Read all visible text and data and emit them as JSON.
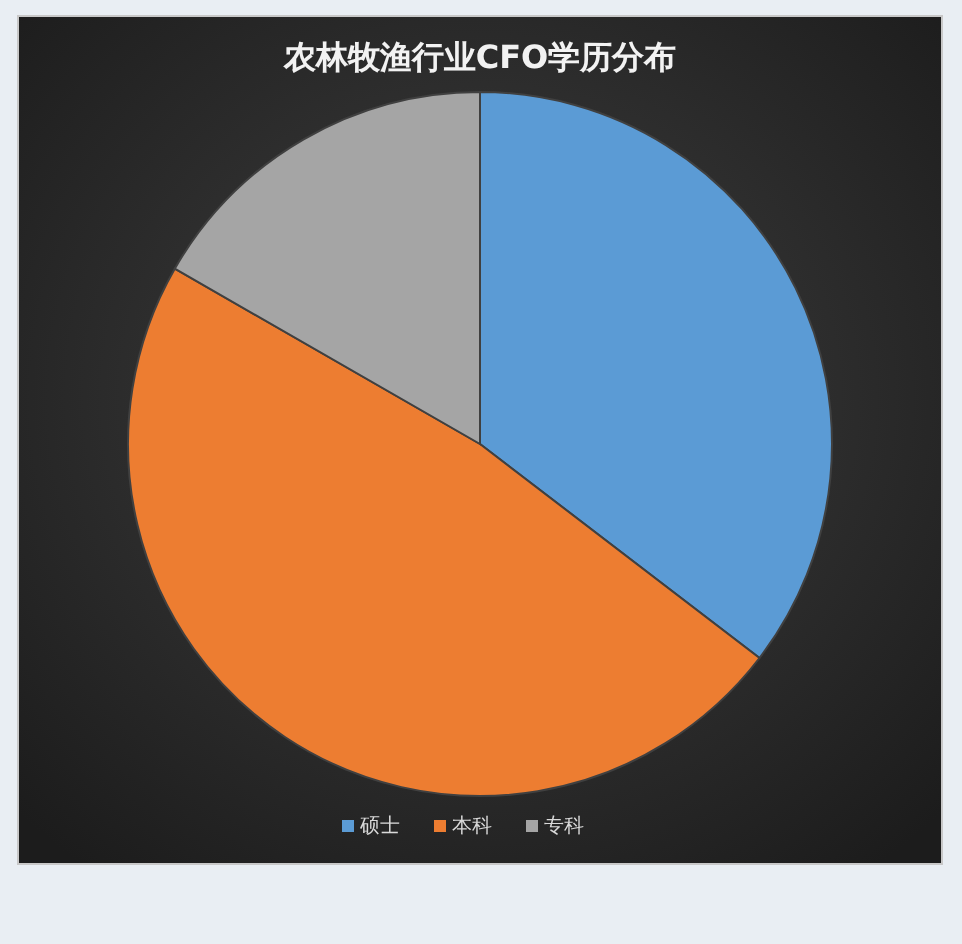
{
  "chart_data": {
    "type": "pie",
    "title": "农林牧渔行业CFO学历分布",
    "categories": [
      "硕士",
      "本科",
      "专科"
    ],
    "values": [
      35.4,
      47.9,
      16.7
    ],
    "colors": [
      "#5b9bd5",
      "#ed7d31",
      "#a5a5a5"
    ],
    "legend": "bottom"
  }
}
